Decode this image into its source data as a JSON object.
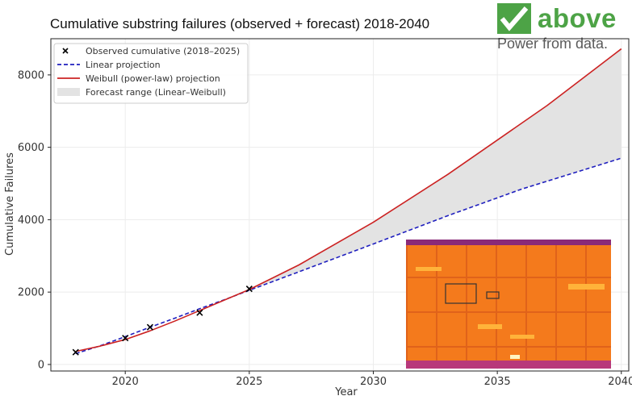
{
  "chart_data": {
    "type": "line",
    "title": "Cumulative substring failures (observed + forecast) 2018-2040",
    "xlabel": "Year",
    "ylabel": "Cumulative Failures",
    "xlim": [
      2017.0,
      2040.3
    ],
    "ylim": [
      -180,
      9000
    ],
    "x_ticks": [
      2020,
      2025,
      2030,
      2035,
      2040
    ],
    "y_ticks": [
      0,
      2000,
      4000,
      6000,
      8000
    ],
    "grid": true,
    "legend_position": "top-left",
    "legend": [
      "Observed cumulative (2018–2025)",
      "Linear projection",
      "Weibull (power-law) projection",
      "Forecast range (Linear–Weibull)"
    ],
    "series": [
      {
        "name": "Observed cumulative (2018–2025)",
        "style": "scatter",
        "marker": "x",
        "color": "#000000",
        "points": [
          [
            2018,
            340
          ],
          [
            2020,
            730
          ],
          [
            2021,
            1030
          ],
          [
            2023,
            1430
          ],
          [
            2025,
            2090
          ]
        ]
      },
      {
        "name": "Linear projection",
        "style": "dashed",
        "color": "#1f1fbf",
        "points": [
          [
            2018,
            300
          ],
          [
            2019,
            520
          ],
          [
            2020,
            770
          ],
          [
            2021,
            1030
          ],
          [
            2022,
            1280
          ],
          [
            2023,
            1540
          ],
          [
            2024,
            1790
          ],
          [
            2025,
            2050
          ],
          [
            2027,
            2560
          ],
          [
            2030,
            3330
          ],
          [
            2033,
            4110
          ],
          [
            2036,
            4850
          ],
          [
            2040,
            5700
          ]
        ]
      },
      {
        "name": "Weibull (power-law) projection",
        "style": "solid",
        "color": "#cc2222",
        "points": [
          [
            2018,
            360
          ],
          [
            2019,
            510
          ],
          [
            2020,
            690
          ],
          [
            2021,
            930
          ],
          [
            2022,
            1200
          ],
          [
            2023,
            1490
          ],
          [
            2024,
            1780
          ],
          [
            2025,
            2070
          ],
          [
            2027,
            2750
          ],
          [
            2030,
            3930
          ],
          [
            2033,
            5250
          ],
          [
            2035,
            6200
          ],
          [
            2037,
            7150
          ],
          [
            2040,
            8720
          ]
        ]
      }
    ],
    "range_band": {
      "name": "Forecast range (Linear–Weibull)",
      "color": "#e3e3e3",
      "from": "Linear projection",
      "to": "Weibull (power-law) projection",
      "x_start": 2025,
      "x_end": 2040
    }
  },
  "logo": {
    "wordmark": "above",
    "tagline": "Power from data."
  },
  "inset_image": {
    "description_icon": "thermal-image-icon",
    "colors": {
      "base": "#f47a1c",
      "hot": "#ffb33a",
      "edge_top": "#8a2a78",
      "edge_bottom": "#b8387a"
    }
  }
}
